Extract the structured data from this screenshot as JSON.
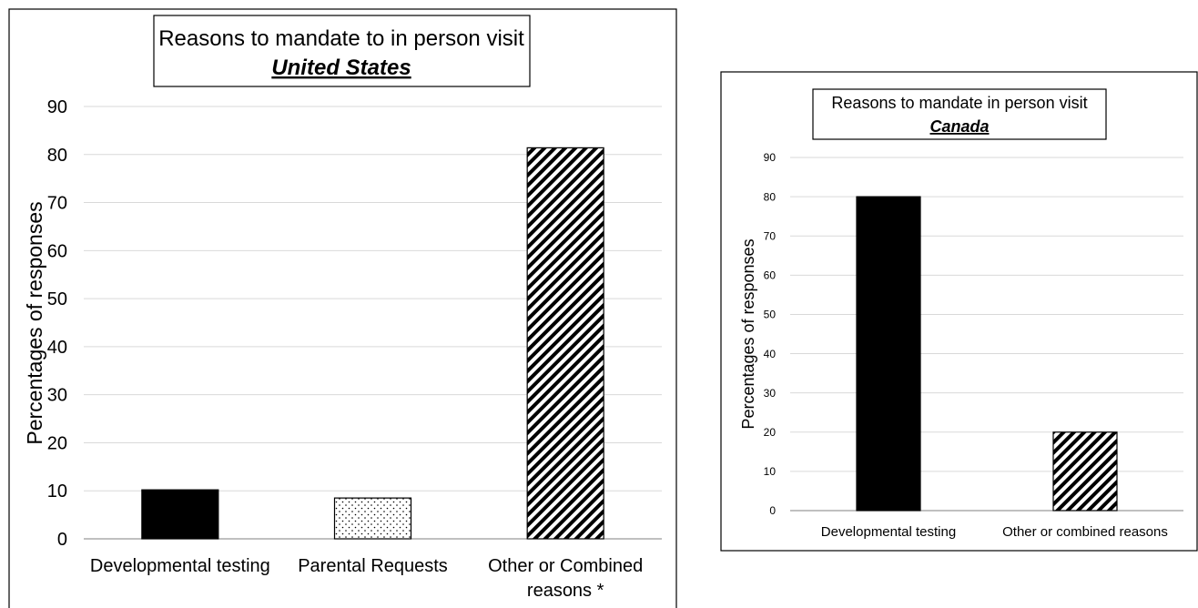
{
  "chart_data": [
    {
      "type": "bar",
      "title": "Reasons to mandate to in person visit",
      "subtitle": "United States",
      "xlabel": "",
      "ylabel": "Percentages of responses",
      "ylim": [
        0,
        90
      ],
      "yticks": [
        0,
        10,
        20,
        30,
        40,
        50,
        60,
        70,
        80,
        90
      ],
      "categories": [
        "Developmental testing",
        "Parental Requests",
        "Other or Combined reasons *"
      ],
      "category_lines": [
        [
          "Developmental testing"
        ],
        [
          "Parental Requests"
        ],
        [
          "Other or Combined",
          "reasons *"
        ]
      ],
      "values": [
        10.2,
        8.5,
        81.4
      ],
      "bar_fills": [
        "solid-black",
        "dotted",
        "diagonal-hatch"
      ],
      "grid": true,
      "legend": "none"
    },
    {
      "type": "bar",
      "title": "Reasons to mandate in person visit",
      "subtitle": "Canada",
      "xlabel": "",
      "ylabel": "Percentages of responses",
      "ylim": [
        0,
        90
      ],
      "yticks": [
        0,
        10,
        20,
        30,
        40,
        50,
        60,
        70,
        80,
        90
      ],
      "categories": [
        "Developmental testing",
        "Other or combined reasons"
      ],
      "category_lines": [
        [
          "Developmental testing"
        ],
        [
          "Other or combined reasons"
        ]
      ],
      "values": [
        80,
        20
      ],
      "bar_fills": [
        "solid-black",
        "diagonal-hatch"
      ],
      "grid": true,
      "legend": "none"
    }
  ],
  "colors": {
    "bar": "#000000",
    "grid": "#d9d9d9",
    "frame": "#000000"
  }
}
